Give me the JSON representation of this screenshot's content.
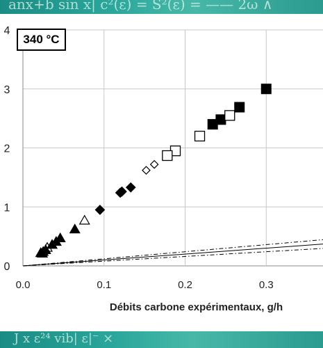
{
  "chart_data": {
    "type": "scatter",
    "title": "340 °C",
    "xlabel": "Débits carbone expérimentaux, g/h",
    "ylabel": "",
    "xlim": [
      0,
      0.37
    ],
    "ylim": [
      0,
      4
    ],
    "x_ticks": [
      "0.0",
      "0.1",
      "0.2",
      "0.3"
    ],
    "y_ticks": [
      "0",
      "1",
      "2",
      "3",
      "4"
    ],
    "grid": true,
    "reference_lines": [
      {
        "style": "solid",
        "slope": 1.0
      },
      {
        "style": "dash-dot",
        "slope": 1.2
      },
      {
        "style": "dash-dot",
        "slope": 0.8
      }
    ],
    "series": [
      {
        "marker": "filled-square",
        "points": [
          [
            0.3,
            3.0
          ],
          [
            0.267,
            2.69
          ],
          [
            0.244,
            2.48
          ],
          [
            0.234,
            2.4
          ]
        ]
      },
      {
        "marker": "open-square",
        "points": [
          [
            0.255,
            2.55
          ],
          [
            0.218,
            2.2
          ],
          [
            0.188,
            1.95
          ],
          [
            0.178,
            1.87
          ]
        ]
      },
      {
        "marker": "open-diamond",
        "points": [
          [
            0.162,
            1.72
          ],
          [
            0.152,
            1.62
          ]
        ]
      },
      {
        "marker": "filled-diamond",
        "points": [
          [
            0.133,
            1.33
          ],
          [
            0.122,
            1.26
          ],
          [
            0.12,
            1.24
          ],
          [
            0.095,
            0.95
          ]
        ]
      },
      {
        "marker": "open-triangle",
        "points": [
          [
            0.076,
            0.77
          ],
          [
            0.03,
            0.31
          ]
        ]
      },
      {
        "marker": "filled-triangle",
        "points": [
          [
            0.064,
            0.62
          ],
          [
            0.046,
            0.47
          ],
          [
            0.041,
            0.41
          ],
          [
            0.036,
            0.36
          ],
          [
            0.028,
            0.27
          ],
          [
            0.025,
            0.24
          ],
          [
            0.022,
            0.22
          ],
          [
            0.024,
            0.21
          ]
        ]
      }
    ]
  },
  "decoration": {
    "top_text": "anx+b sin x|  c²(ε) = S²(ε) = ——  2ω ∧",
    "bottom_text": "J x                 ε²⁴         vib|     ε|⁻     ×"
  }
}
